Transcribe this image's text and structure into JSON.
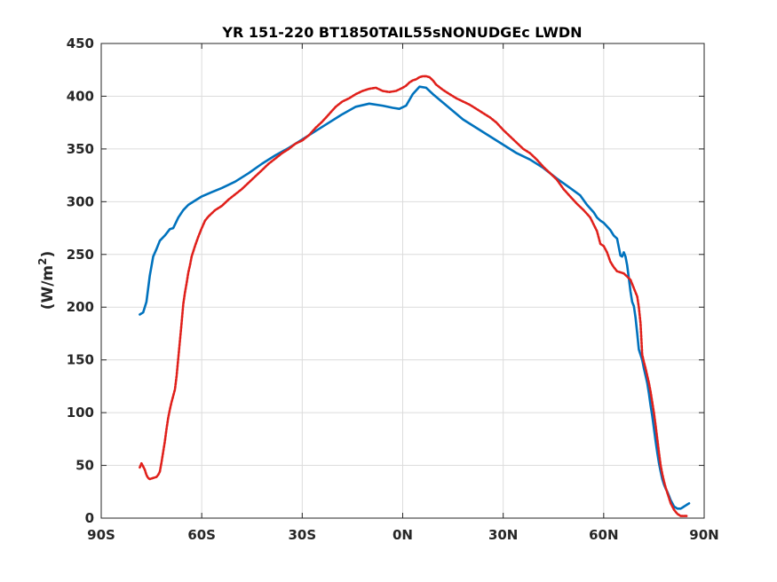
{
  "chart_data": {
    "type": "line",
    "title": "YR 151-220 BT1850TAIL55sNONUDGEc LWDN",
    "ylabel": "(W/m",
    "ylabel_sup": "2",
    "ylabel_close": ")",
    "xlabel": "",
    "xlim": [
      -90,
      90
    ],
    "ylim": [
      0,
      450
    ],
    "xticks": [
      -90,
      -60,
      -30,
      0,
      30,
      60,
      90
    ],
    "xtick_labels": [
      "90S",
      "60S",
      "30S",
      "0N",
      "30N",
      "60N",
      "90N"
    ],
    "yticks": [
      0,
      50,
      100,
      150,
      200,
      250,
      300,
      350,
      400,
      450
    ],
    "ytick_labels": [
      "0",
      "50",
      "100",
      "150",
      "200",
      "250",
      "300",
      "350",
      "400",
      "450"
    ],
    "grid": true,
    "legend": "none",
    "series": [
      {
        "color": "#0072BD",
        "style": "solid",
        "x": [
          -78.5,
          -77.5,
          -76.5,
          -75.5,
          -74.5,
          -73.5,
          -72.5,
          -71,
          -69.5,
          -68.5,
          -67,
          -65.5,
          -64,
          -62,
          -60,
          -57,
          -54,
          -50,
          -46,
          -42,
          -38,
          -34,
          -30,
          -26,
          -22,
          -18,
          -14,
          -10,
          -6,
          -3,
          -1,
          1,
          3,
          5,
          7,
          9,
          12,
          15,
          18,
          22,
          26,
          30,
          34,
          38,
          42,
          46,
          50,
          53,
          55,
          57,
          58,
          59,
          60,
          62,
          63,
          64,
          65,
          65.5,
          66,
          66.5,
          67,
          67.5,
          68,
          68.5,
          69,
          69.5,
          70,
          70.5,
          71,
          71.5,
          72,
          72.5,
          73,
          73.5,
          74,
          74.5,
          75,
          75.5,
          76,
          76.5,
          77,
          77.5,
          78,
          78.5,
          79,
          79.5,
          80,
          80.5,
          81,
          81.5,
          82,
          82.5,
          83,
          83.5,
          84,
          84.5,
          85,
          85.5
        ],
        "y": [
          193,
          195,
          205,
          230,
          248,
          255,
          263,
          268,
          274,
          275,
          285,
          292,
          297,
          301,
          305,
          309,
          313,
          319,
          327,
          336,
          344,
          351,
          359,
          367,
          375,
          383,
          390,
          393,
          391,
          389,
          388,
          391,
          402,
          409,
          408,
          402,
          394,
          386,
          378,
          370,
          362,
          354,
          346,
          340,
          332,
          322,
          313,
          306,
          297,
          290,
          285,
          282,
          280,
          273,
          268,
          265,
          249,
          248,
          252,
          248,
          240,
          228,
          215,
          205,
          201,
          190,
          175,
          160,
          155,
          150,
          142,
          135,
          128,
          118,
          107,
          97,
          85,
          73,
          62,
          52,
          44,
          37,
          32,
          28,
          25,
          21,
          17,
          14,
          11,
          10,
          9,
          9,
          9,
          10,
          11,
          12,
          13,
          14
        ]
      },
      {
        "color": "#E0201B",
        "style": "dotted",
        "x": [
          -78.5,
          -78,
          -77.5,
          -77,
          -76.5,
          -76,
          -75.5,
          -74.5,
          -73.5,
          -73,
          -72.5,
          -72,
          -71.5,
          -71,
          -70.5,
          -70,
          -69.5,
          -69,
          -68.5,
          -68,
          -67.5,
          -67,
          -66.5,
          -66,
          -65.5,
          -65,
          -64.5,
          -64,
          -63.5,
          -63,
          -62,
          -61,
          -60,
          -59,
          -58,
          -57,
          -56,
          -55,
          -54,
          -52,
          -50,
          -48,
          -46,
          -44,
          -42,
          -40,
          -38,
          -36,
          -34,
          -32,
          -30,
          -28,
          -26,
          -24,
          -22,
          -20,
          -18,
          -16,
          -14,
          -12,
          -10,
          -8,
          -6,
          -4,
          -2,
          0,
          1,
          2,
          3,
          4,
          5,
          6,
          7,
          8,
          9,
          10,
          12,
          14,
          16,
          18,
          20,
          22,
          24,
          26,
          28,
          30,
          32,
          34,
          36,
          38,
          40,
          42,
          44,
          46,
          48,
          50,
          52,
          54,
          56,
          58,
          59,
          60,
          61,
          62,
          63,
          64,
          65,
          66,
          67,
          68,
          69,
          70,
          70.5,
          71,
          71.5,
          72,
          72.5,
          73,
          73.5,
          74,
          74.5,
          75,
          75.5,
          76,
          76.5,
          77,
          77.5,
          78,
          78.5,
          79,
          79.5,
          80,
          80.5,
          81,
          81.5,
          82,
          82.5,
          83,
          83.5,
          84,
          84.5,
          85
        ],
        "y": [
          48,
          52,
          49,
          46,
          41,
          38,
          37,
          38,
          39,
          41,
          44,
          53,
          63,
          73,
          85,
          95,
          103,
          110,
          116,
          122,
          135,
          152,
          168,
          185,
          203,
          214,
          223,
          233,
          240,
          248,
          258,
          267,
          275,
          282,
          286,
          289,
          292,
          294,
          296,
          302,
          307,
          312,
          318,
          324,
          330,
          336,
          341,
          346,
          350,
          355,
          358,
          363,
          370,
          376,
          383,
          390,
          395,
          398,
          402,
          405,
          407,
          408,
          405,
          404,
          405,
          408,
          410,
          413,
          415,
          416,
          418,
          419,
          419,
          418,
          415,
          411,
          406,
          402,
          398,
          395,
          392,
          388,
          384,
          380,
          375,
          368,
          362,
          356,
          350,
          346,
          340,
          333,
          327,
          321,
          312,
          305,
          298,
          292,
          285,
          272,
          260,
          258,
          252,
          243,
          238,
          234,
          233,
          232,
          229,
          226,
          218,
          210,
          200,
          185,
          155,
          148,
          142,
          135,
          128,
          120,
          110,
          100,
          88,
          75,
          62,
          50,
          42,
          35,
          29,
          24,
          19,
          14,
          11,
          8,
          6,
          4,
          3,
          2,
          2,
          2,
          2,
          2
        ]
      }
    ]
  }
}
